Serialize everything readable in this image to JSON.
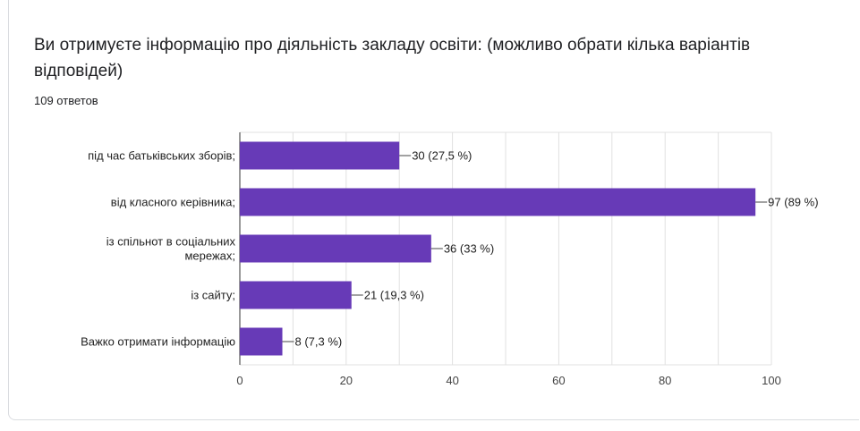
{
  "title": "Ви отримуєте інформацію про діяльність закладу освіти: (можливо обрати кілька варіантів відповідей)",
  "responses": "109 ответов",
  "colors": {
    "bar": "#673ab7",
    "grid": "#e0e0e0",
    "axis": "#333333"
  },
  "chart_data": {
    "type": "bar",
    "orientation": "horizontal",
    "categories": [
      [
        "під час батьківських зборів;"
      ],
      [
        "від класного керівника;"
      ],
      [
        "із спільнот в соціальних",
        "мережах;"
      ],
      [
        "із сайту;"
      ],
      [
        "Важко отримати інформацію"
      ]
    ],
    "values": [
      30,
      97,
      36,
      21,
      8
    ],
    "data_labels": [
      "30 (27,5 %)",
      "97 (89 %)",
      "36 (33 %)",
      "21 (19,3 %)",
      "8 (7,3 %)"
    ],
    "xlim": [
      0,
      100
    ],
    "xticks": [
      0,
      20,
      40,
      60,
      80,
      100
    ],
    "grid": true,
    "legend": "none"
  }
}
